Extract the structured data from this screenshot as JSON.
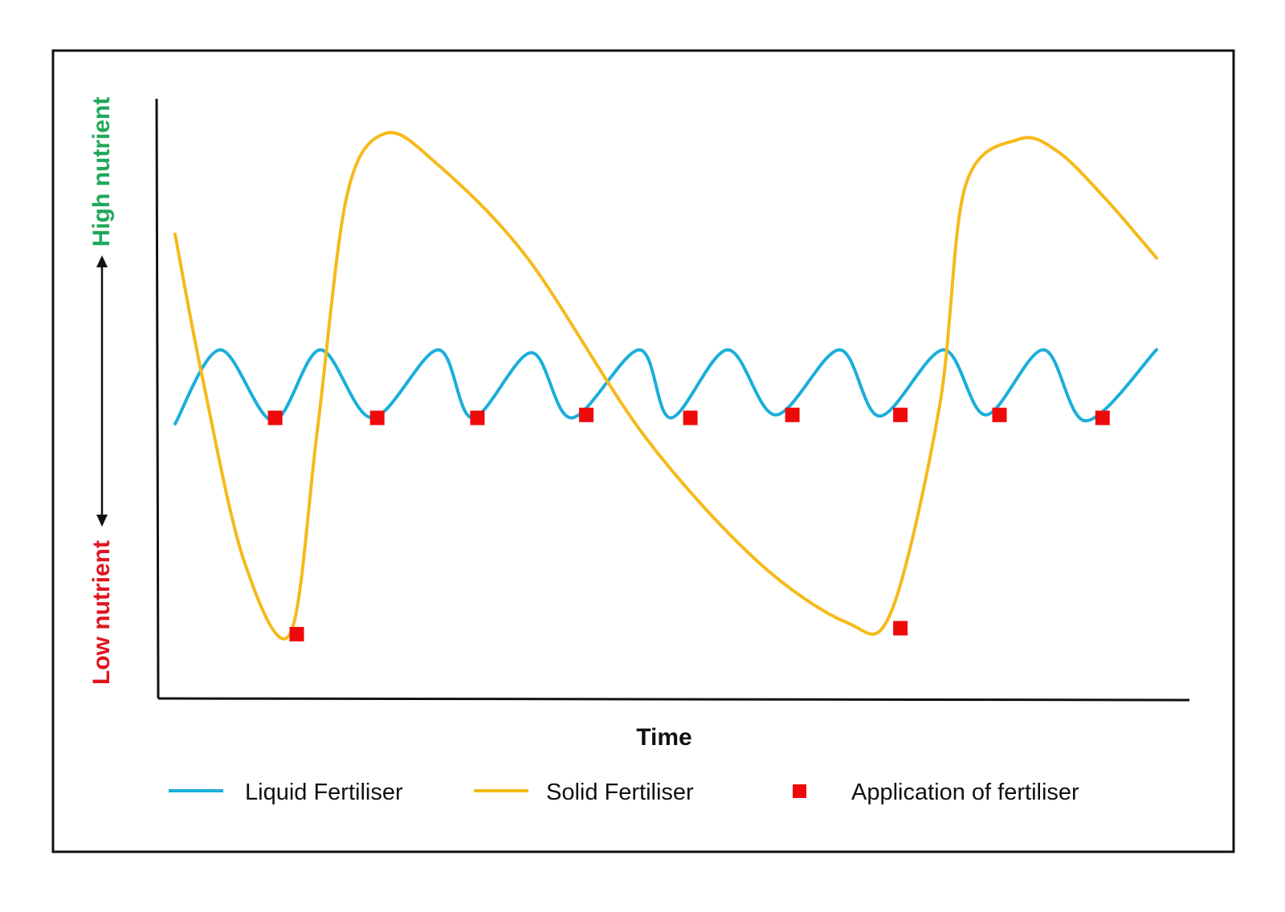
{
  "chart_data": {
    "type": "line",
    "xlabel": "Time",
    "ylabel_high": "High nutrient",
    "ylabel_low": "Low nutrient",
    "xlim": [
      0,
      100
    ],
    "ylim": [
      0,
      100
    ],
    "grid": false,
    "legend_position": "bottom",
    "colors": {
      "liquid": "#1AAEDB",
      "solid": "#F5BA1A",
      "application": "#EE0A0A",
      "high_label": "#1FA85A",
      "low_label": "#E0141E",
      "axis": "#111111"
    },
    "series": [
      {
        "name": "Liquid Fertiliser",
        "x": [
          0,
          4.6,
          10,
          14.8,
          20.1,
          26.8,
          30.3,
          36.3,
          40.4,
          47.3,
          50.5,
          56.3,
          61.2,
          67.7,
          71.8,
          78.3,
          82.6,
          88.5,
          92.8,
          100
        ],
        "y": [
          45,
          57.5,
          45.5,
          57.5,
          46,
          57.5,
          46,
          57,
          46,
          57.5,
          46,
          57.5,
          46.5,
          57.5,
          46.3,
          57.5,
          46.5,
          57.5,
          45.5,
          57.5
        ]
      },
      {
        "name": "Solid Fertiliser",
        "x": [
          0,
          2.7,
          7,
          11.7,
          14.5,
          17.5,
          21.4,
          26.6,
          35.9,
          47.8,
          59.2,
          68.4,
          72.9,
          77.9,
          80.5,
          85.9,
          89.9,
          94.8,
          100
        ],
        "y": [
          77,
          53.5,
          22,
          9.5,
          44,
          83.5,
          94,
          89,
          73,
          43,
          22,
          11.5,
          13,
          48,
          85,
          93,
          91,
          83,
          73
        ]
      }
    ],
    "applications": {
      "name": "Application of fertiliser",
      "points": [
        {
          "x": 10.2,
          "y": 46
        },
        {
          "x": 20.6,
          "y": 46
        },
        {
          "x": 30.8,
          "y": 46
        },
        {
          "x": 41.9,
          "y": 46.5
        },
        {
          "x": 52.5,
          "y": 46
        },
        {
          "x": 62.9,
          "y": 46.5
        },
        {
          "x": 73.9,
          "y": 46.5
        },
        {
          "x": 84,
          "y": 46.5
        },
        {
          "x": 94.5,
          "y": 46
        },
        {
          "x": 12.4,
          "y": 9.5
        },
        {
          "x": 73.9,
          "y": 10.5
        }
      ]
    }
  }
}
